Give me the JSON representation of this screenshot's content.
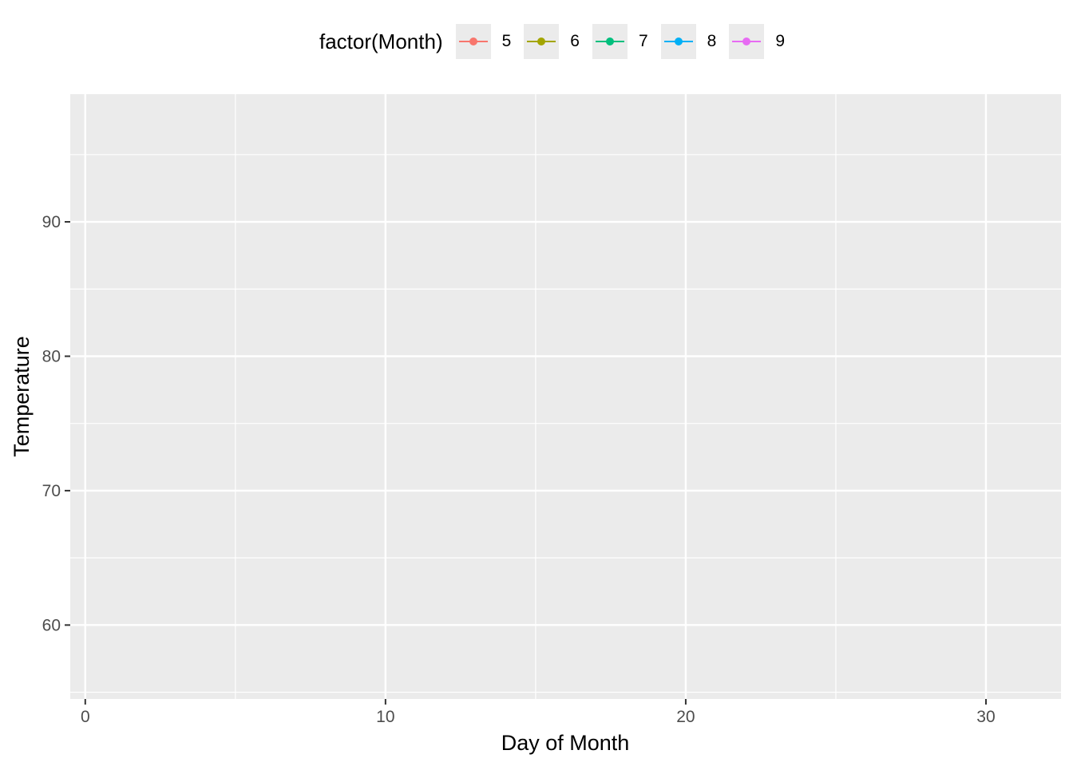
{
  "chart_data": {
    "type": "line",
    "title": "",
    "xlabel": "Day of Month",
    "ylabel": "Temperature",
    "xlim": [
      -0.5,
      32.5
    ],
    "ylim": [
      54.5,
      99.5
    ],
    "x_major_ticks": [
      0,
      10,
      20,
      30
    ],
    "x_minor_ticks": [
      5,
      15,
      25
    ],
    "y_major_ticks": [
      60,
      70,
      80,
      90
    ],
    "y_minor_ticks": [
      55,
      65,
      75,
      85,
      95
    ],
    "grid": true,
    "legend": {
      "title": "factor(Month)",
      "position": "top"
    },
    "series": [
      {
        "name": "5",
        "color": "#F8766D",
        "values": []
      },
      {
        "name": "6",
        "color": "#A3A500",
        "values": []
      },
      {
        "name": "7",
        "color": "#00BF7D",
        "values": []
      },
      {
        "name": "8",
        "color": "#00B0F6",
        "values": []
      },
      {
        "name": "9",
        "color": "#E76BF3",
        "values": []
      }
    ]
  }
}
